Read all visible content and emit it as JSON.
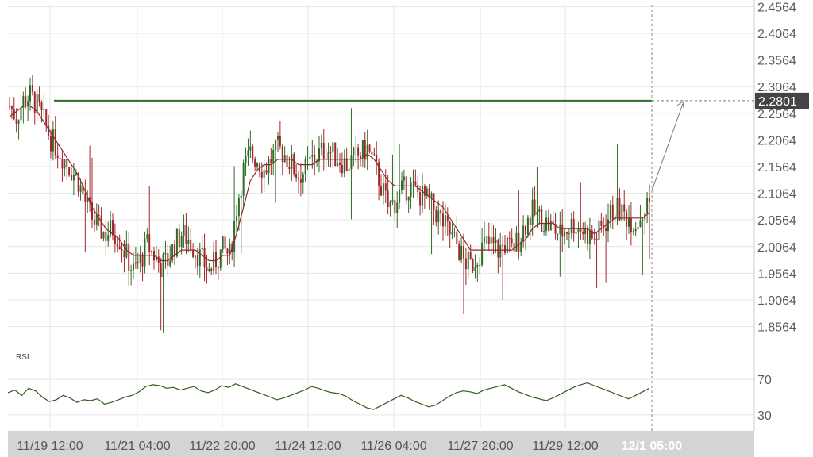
{
  "colors": {
    "up": "#2f6b25",
    "down": "#a3262c",
    "ma": "#8a2a2a",
    "level": "#2e6e2a",
    "rsi": "#2f5a1e",
    "grid": "#e6e6e6",
    "axis_bg": "#d4d4d4",
    "price_box": "#444444"
  },
  "chart_data": {
    "type": "candlestick",
    "title": "",
    "price_axis": {
      "ticks": [
        "2.4564",
        "2.4064",
        "2.3564",
        "2.3064",
        "2.2564",
        "2.2064",
        "2.1564",
        "2.1064",
        "2.0564",
        "2.0064",
        "1.9564",
        "1.9064",
        "1.8564"
      ],
      "ylim": [
        1.82,
        2.46
      ]
    },
    "time_axis": {
      "ticks": [
        "11/19 12:00",
        "11/21 04:00",
        "11/22 20:00",
        "11/24 12:00",
        "11/26 04:00",
        "11/27 20:00",
        "11/29 12:00"
      ],
      "current_label": "12/1 05:00"
    },
    "horizontal_level": 2.2801,
    "current_price_label": "2.2801",
    "close_series": [
      2.27,
      2.25,
      2.28,
      2.29,
      2.27,
      2.24,
      2.21,
      2.19,
      2.17,
      2.15,
      2.13,
      2.09,
      2.06,
      2.04,
      2.03,
      2.04,
      2.02,
      1.99,
      1.96,
      1.98,
      2.01,
      1.99,
      1.97,
      1.98,
      2.01,
      2.03,
      2.02,
      2.0,
      1.98,
      1.96,
      1.98,
      2.0,
      1.99,
      2.08,
      2.15,
      2.18,
      2.17,
      2.15,
      2.17,
      2.19,
      2.18,
      2.16,
      2.14,
      2.15,
      2.17,
      2.18,
      2.19,
      2.18,
      2.17,
      2.16,
      2.17,
      2.18,
      2.19,
      2.16,
      2.12,
      2.08,
      2.09,
      2.11,
      2.12,
      2.11,
      2.1,
      2.09,
      2.07,
      2.05,
      2.03,
      2.01,
      1.98,
      1.97,
      1.99,
      2.01,
      2.01,
      2.0,
      2.01,
      2.0,
      2.02,
      2.05,
      2.07,
      2.06,
      2.05,
      2.04,
      2.03,
      2.04,
      2.05,
      2.04,
      2.03,
      2.02,
      2.04,
      2.06,
      2.08,
      2.07,
      2.06,
      2.05,
      2.07,
      2.09
    ],
    "ma_series": [
      2.25,
      2.26,
      2.27,
      2.27,
      2.26,
      2.24,
      2.22,
      2.2,
      2.18,
      2.16,
      2.14,
      2.11,
      2.08,
      2.06,
      2.04,
      2.03,
      2.02,
      2.0,
      1.99,
      1.99,
      1.99,
      1.99,
      1.98,
      1.98,
      1.99,
      2.0,
      2.0,
      2.0,
      1.99,
      1.98,
      1.98,
      1.99,
      1.99,
      2.03,
      2.08,
      2.13,
      2.15,
      2.16,
      2.16,
      2.17,
      2.17,
      2.17,
      2.16,
      2.16,
      2.16,
      2.17,
      2.17,
      2.17,
      2.17,
      2.17,
      2.17,
      2.17,
      2.18,
      2.17,
      2.15,
      2.13,
      2.12,
      2.12,
      2.12,
      2.12,
      2.11,
      2.1,
      2.09,
      2.08,
      2.06,
      2.04,
      2.02,
      2.0,
      2.0,
      2.0,
      2.0,
      2.0,
      2.0,
      2.0,
      2.01,
      2.02,
      2.04,
      2.05,
      2.05,
      2.05,
      2.04,
      2.04,
      2.04,
      2.04,
      2.04,
      2.03,
      2.04,
      2.05,
      2.06,
      2.06,
      2.06,
      2.06,
      2.06,
      2.07
    ],
    "rsi": {
      "label": "RSI",
      "levels": [
        "70",
        "30"
      ],
      "values": [
        55,
        58,
        52,
        60,
        57,
        50,
        45,
        47,
        52,
        49,
        44,
        47,
        46,
        48,
        42,
        44,
        47,
        50,
        52,
        56,
        62,
        64,
        63,
        60,
        61,
        58,
        60,
        62,
        57,
        55,
        58,
        63,
        61,
        65,
        62,
        59,
        56,
        53,
        50,
        47,
        49,
        52,
        55,
        58,
        62,
        60,
        57,
        55,
        54,
        51,
        46,
        42,
        38,
        36,
        40,
        44,
        48,
        52,
        49,
        45,
        42,
        39,
        41,
        46,
        51,
        55,
        57,
        56,
        54,
        58,
        60,
        62,
        64,
        60,
        56,
        53,
        50,
        48,
        46,
        49,
        53,
        57,
        61,
        64,
        66,
        63,
        60,
        57,
        54,
        51,
        48,
        52,
        56,
        60
      ],
      "ylim": [
        20,
        80
      ]
    }
  }
}
